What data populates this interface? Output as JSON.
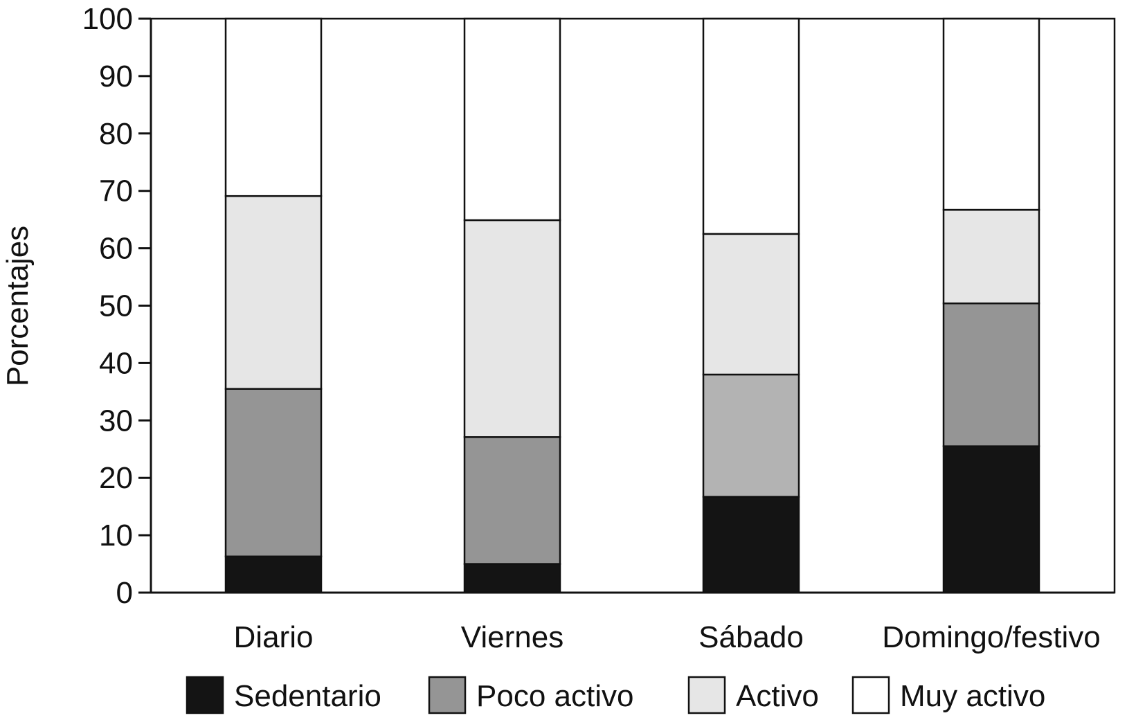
{
  "chart_data": {
    "type": "bar",
    "stacked": true,
    "categories": [
      "Diario",
      "Viernes",
      "Sábado",
      "Domingo/festivo"
    ],
    "series": [
      {
        "name": "Sedentario",
        "color": "#141414",
        "values": [
          6.3,
          5.0,
          16.7,
          25.5
        ]
      },
      {
        "name": "Poco activo",
        "color": "#959595",
        "values": [
          29.2,
          22.1,
          21.3,
          24.9
        ]
      },
      {
        "name": "Activo",
        "color": "#e6e6e6",
        "values": [
          33.6,
          37.8,
          24.5,
          16.3
        ]
      },
      {
        "name": "Muy activo",
        "color": "#ffffff",
        "values": [
          30.9,
          35.1,
          37.5,
          33.3
        ]
      }
    ],
    "title": "",
    "xlabel": "",
    "ylabel": "Porcentajes",
    "ylim": [
      0,
      100
    ],
    "yticks": [
      0,
      10,
      20,
      30,
      40,
      50,
      60,
      70,
      80,
      90,
      100
    ],
    "grid": false,
    "legend_position": "bottom"
  },
  "bar_colors_by_category": {
    "Sábado": {
      "Poco activo": "#b3b3b3"
    }
  }
}
